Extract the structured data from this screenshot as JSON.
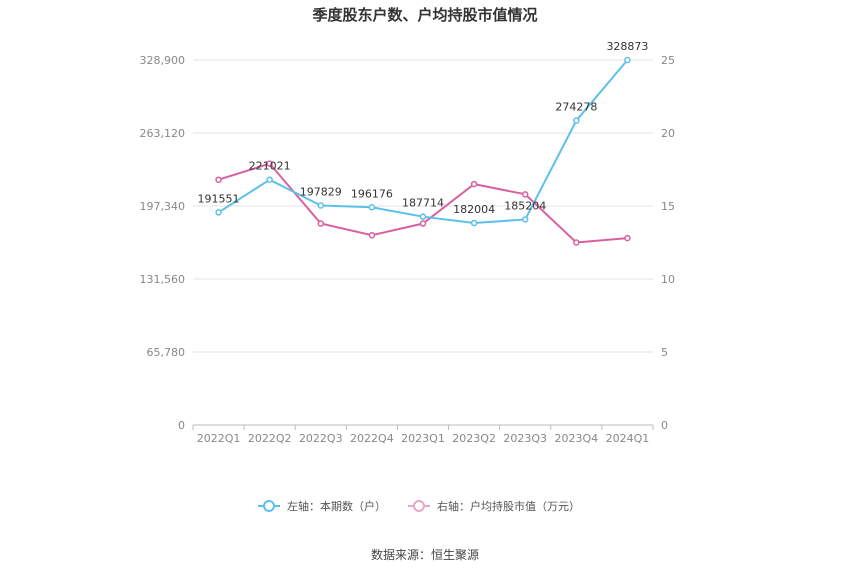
{
  "chart_data": {
    "type": "line",
    "title": "季度股东户数、户均持股市值情况",
    "categories": [
      "2022Q1",
      "2022Q2",
      "2022Q3",
      "2022Q4",
      "2023Q1",
      "2023Q2",
      "2023Q3",
      "2023Q4",
      "2024Q1"
    ],
    "left_axis": {
      "ticks": [
        "0",
        "65,780",
        "131,560",
        "197,340",
        "263,120",
        "328,900"
      ],
      "ylim": [
        0,
        328900
      ]
    },
    "right_axis": {
      "ticks": [
        "0",
        "5",
        "10",
        "15",
        "20",
        "25"
      ],
      "ylim": [
        0,
        25
      ]
    },
    "series": [
      {
        "name": "左轴：本期数（户）",
        "axis": "left",
        "color": "#5bc0eb",
        "values": [
          191551,
          221021,
          197829,
          196176,
          187714,
          182004,
          185204,
          274278,
          328873
        ],
        "labels": [
          "191551",
          "221021",
          "197829",
          "196176",
          "187714",
          "182004",
          "185204",
          "274278",
          "328873"
        ]
      },
      {
        "name": "右轴：户均持股市值（万元）",
        "axis": "right",
        "color": "#d9609f",
        "values": [
          16.8,
          17.9,
          13.8,
          13.0,
          13.8,
          16.5,
          15.8,
          12.5,
          12.8
        ]
      }
    ],
    "grid": true,
    "legend_position": "bottom"
  },
  "source": "数据来源：恒生聚源"
}
